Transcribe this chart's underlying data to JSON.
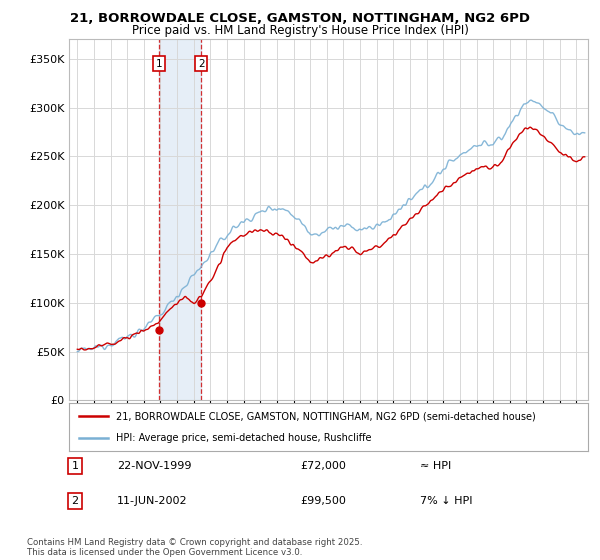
{
  "title_line1": "21, BORROWDALE CLOSE, GAMSTON, NOTTINGHAM, NG2 6PD",
  "title_line2": "Price paid vs. HM Land Registry's House Price Index (HPI)",
  "background_color": "#ffffff",
  "plot_bg_color": "#ffffff",
  "grid_color": "#d8d8d8",
  "sale1_date_label": "22-NOV-1999",
  "sale1_price": 72000,
  "sale1_hpi_note": "≈ HPI",
  "sale2_date_label": "11-JUN-2002",
  "sale2_price": 99500,
  "sale2_hpi_note": "7% ↓ HPI",
  "sale1_x": 1999.9,
  "sale2_x": 2002.45,
  "line1_color": "#cc0000",
  "line2_color": "#7ab0d4",
  "shading_color": "#dce8f5",
  "shading_alpha": 0.7,
  "legend_label1": "21, BORROWDALE CLOSE, GAMSTON, NOTTINGHAM, NG2 6PD (semi-detached house)",
  "legend_label2": "HPI: Average price, semi-detached house, Rushcliffe",
  "copyright_text": "Contains HM Land Registry data © Crown copyright and database right 2025.\nThis data is licensed under the Open Government Licence v3.0.",
  "ylim": [
    0,
    370000
  ],
  "xlim_start": 1994.5,
  "xlim_end": 2025.7,
  "yticks": [
    0,
    50000,
    100000,
    150000,
    200000,
    250000,
    300000,
    350000
  ],
  "xticks": [
    1995,
    1996,
    1997,
    1998,
    1999,
    2000,
    2001,
    2002,
    2003,
    2004,
    2005,
    2006,
    2007,
    2008,
    2009,
    2010,
    2011,
    2012,
    2013,
    2014,
    2015,
    2016,
    2017,
    2018,
    2019,
    2020,
    2021,
    2022,
    2023,
    2024,
    2025
  ],
  "hpi_years": [
    1995,
    1995.5,
    1996,
    1996.5,
    1997,
    1997.5,
    1998,
    1998.5,
    1999,
    1999.5,
    2000,
    2000.5,
    2001,
    2001.5,
    2002,
    2002.5,
    2003,
    2003.5,
    2004,
    2004.5,
    2005,
    2005.5,
    2006,
    2006.5,
    2007,
    2007.5,
    2008,
    2008.5,
    2009,
    2009.5,
    2010,
    2010.5,
    2011,
    2011.5,
    2012,
    2012.5,
    2013,
    2013.5,
    2014,
    2014.5,
    2015,
    2015.5,
    2016,
    2016.5,
    2017,
    2017.5,
    2018,
    2018.5,
    2019,
    2019.5,
    2020,
    2020.5,
    2021,
    2021.5,
    2022,
    2022.5,
    2023,
    2023.5,
    2024,
    2024.5,
    2025,
    2025.5
  ],
  "hpi_vals": [
    50000,
    51500,
    53000,
    56000,
    59000,
    62000,
    65000,
    69000,
    74000,
    80000,
    88000,
    98000,
    108000,
    118000,
    128000,
    138000,
    150000,
    160000,
    170000,
    178000,
    183000,
    188000,
    192000,
    197000,
    198000,
    195000,
    190000,
    182000,
    172000,
    171000,
    174000,
    177000,
    178000,
    177000,
    175000,
    176000,
    178000,
    183000,
    190000,
    197000,
    204000,
    212000,
    220000,
    228000,
    237000,
    245000,
    252000,
    257000,
    261000,
    264000,
    262000,
    268000,
    282000,
    295000,
    305000,
    308000,
    300000,
    292000,
    284000,
    278000,
    272000,
    275000
  ],
  "red_years": [
    1995,
    1995.5,
    1996,
    1996.5,
    1997,
    1997.5,
    1998,
    1998.5,
    1999,
    1999.5,
    2000,
    2000.5,
    2001,
    2001.5,
    2002,
    2002.5,
    2003,
    2003.5,
    2004,
    2004.5,
    2005,
    2005.5,
    2006,
    2006.5,
    2007,
    2007.5,
    2008,
    2008.5,
    2009,
    2009.5,
    2010,
    2010.5,
    2011,
    2011.5,
    2012,
    2012.5,
    2013,
    2013.5,
    2014,
    2014.5,
    2015,
    2015.5,
    2016,
    2016.5,
    2017,
    2017.5,
    2018,
    2018.5,
    2019,
    2019.5,
    2020,
    2020.5,
    2021,
    2021.5,
    2022,
    2022.5,
    2023,
    2023.5,
    2024,
    2024.5,
    2025,
    2025.5
  ],
  "red_vals": [
    52000,
    53000,
    54000,
    56000,
    58000,
    61000,
    64000,
    68000,
    72000,
    76000,
    82000,
    92000,
    100000,
    106000,
    99500,
    108000,
    122000,
    138000,
    155000,
    165000,
    170000,
    173000,
    174000,
    172000,
    170000,
    165000,
    160000,
    152000,
    142000,
    143000,
    148000,
    153000,
    156000,
    155000,
    152000,
    153000,
    157000,
    163000,
    170000,
    177000,
    185000,
    193000,
    200000,
    208000,
    216000,
    223000,
    229000,
    233000,
    237000,
    240000,
    238000,
    244000,
    258000,
    270000,
    278000,
    280000,
    272000,
    264000,
    256000,
    250000,
    246000,
    248000
  ]
}
